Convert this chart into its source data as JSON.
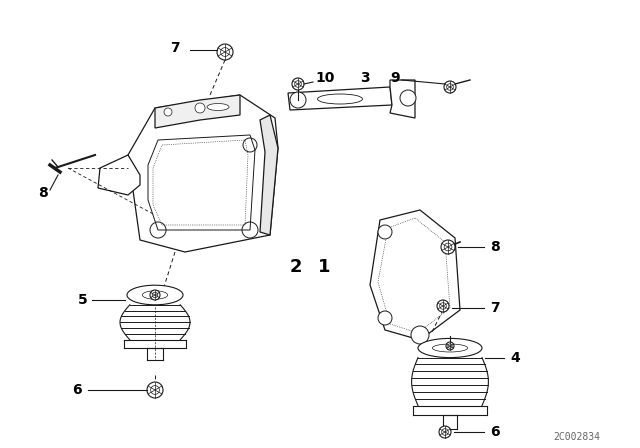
{
  "bg_color": "#ffffff",
  "line_color": "#1a1a1a",
  "label_color": "#000000",
  "diagram_id": "2C002834",
  "watermark": "2C002834"
}
